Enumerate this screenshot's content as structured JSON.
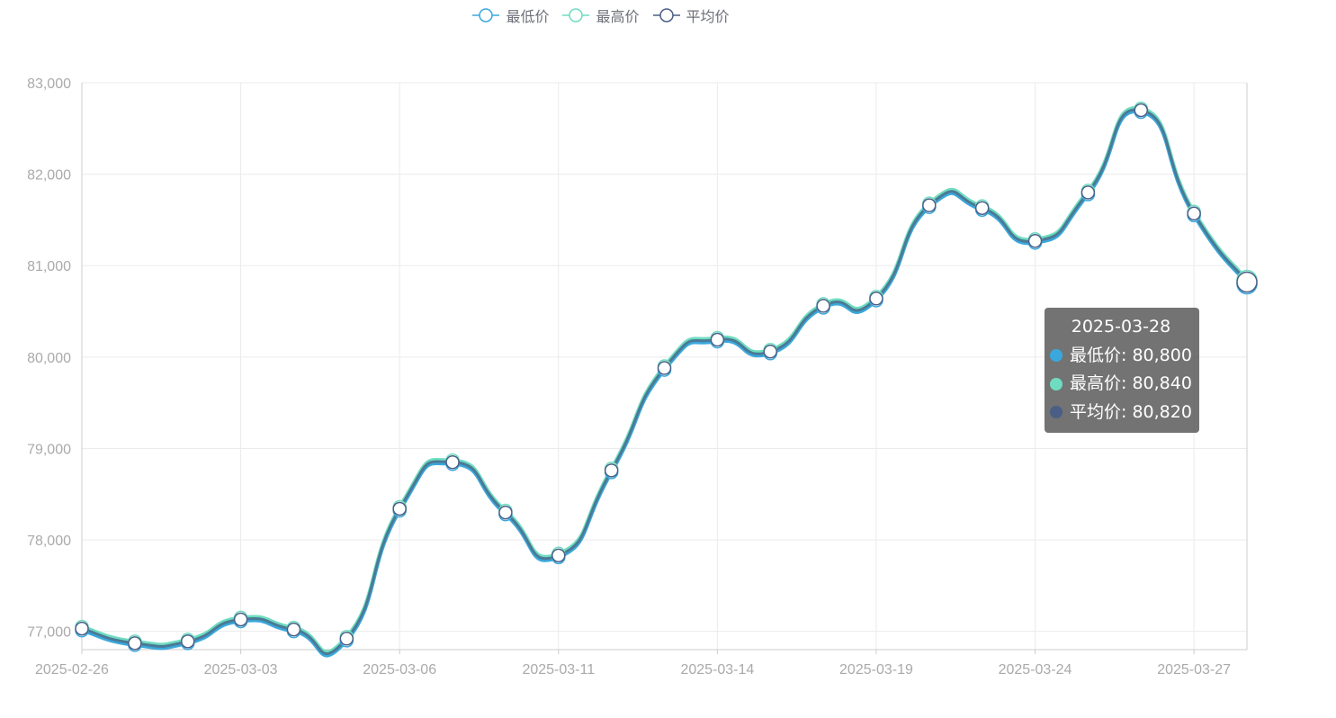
{
  "colors": {
    "low": "#3aa8dc",
    "high": "#6fdcc0",
    "avg": "#4a5e86",
    "line": "#4a7a96",
    "grid": "#ebebeb",
    "axis": "#cccccc",
    "axis_text": "#aaaaaa"
  },
  "legend": [
    {
      "name": "最低价",
      "color": "#3aa8dc"
    },
    {
      "name": "最高价",
      "color": "#6fdcc0"
    },
    {
      "name": "平均价",
      "color": "#4a5e86"
    }
  ],
  "tooltip": {
    "date": "2025-03-28",
    "rows": [
      {
        "label": "最低价: 80,800",
        "color": "#3aa8dc"
      },
      {
        "label": "最高价: 80,840",
        "color": "#6fdcc0"
      },
      {
        "label": "平均价: 80,820",
        "color": "#4a5e86"
      }
    ]
  },
  "chart_data": {
    "type": "line",
    "smooth": true,
    "grid": true,
    "legend_position": "top-center",
    "ylim": [
      76800,
      83000
    ],
    "y_ticks": [
      77000,
      78000,
      79000,
      80000,
      81000,
      82000,
      83000
    ],
    "y_tick_labels": [
      "77,000",
      "78,000",
      "79,000",
      "80,000",
      "81,000",
      "82,000",
      "83,000"
    ],
    "x_tick_labels": [
      "2025-02-26",
      "2025-03-03",
      "2025-03-06",
      "2025-03-11",
      "2025-03-14",
      "2025-03-19",
      "2025-03-24",
      "2025-03-27"
    ],
    "x_tick_every": 3,
    "point_count": 23,
    "last_x": "2025-03-28",
    "series": [
      {
        "name": "最低价",
        "values": [
          77010,
          76850,
          76870,
          77110,
          77000,
          76900,
          78320,
          78830,
          78280,
          77810,
          78740,
          79860,
          80170,
          80040,
          80540,
          80620,
          81640,
          81610,
          81250,
          81780,
          82680,
          81550,
          80800
        ]
      },
      {
        "name": "最高价",
        "values": [
          77050,
          76890,
          76910,
          77150,
          77040,
          76940,
          78360,
          78870,
          78320,
          77850,
          78780,
          79900,
          80210,
          80080,
          80580,
          80660,
          81680,
          81650,
          81290,
          81820,
          82720,
          81590,
          80840
        ]
      },
      {
        "name": "平均价",
        "values": [
          77030,
          76870,
          76890,
          77130,
          77020,
          76920,
          78340,
          78850,
          78300,
          77830,
          78760,
          79880,
          80190,
          80060,
          80560,
          80640,
          81660,
          81630,
          81270,
          81800,
          82700,
          81570,
          80820
        ]
      }
    ]
  }
}
